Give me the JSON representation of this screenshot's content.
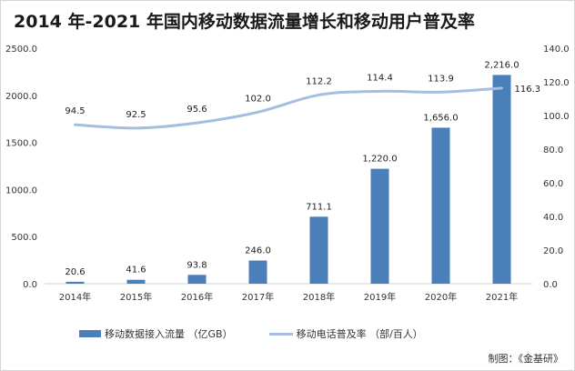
{
  "chart_data": {
    "type": "bar",
    "title": "2014 年-2021 年国内移动数据流量增长和移动用户普及率",
    "categories": [
      "2014年",
      "2015年",
      "2016年",
      "2017年",
      "2018年",
      "2019年",
      "2020年",
      "2021年"
    ],
    "series": [
      {
        "name": "移动数据接入流量 （亿GB）",
        "type": "bar",
        "axis": "left",
        "values": [
          20.6,
          41.6,
          93.8,
          246.0,
          711.1,
          1220.0,
          1656.0,
          2216.0
        ],
        "labels": [
          "20.6",
          "41.6",
          "93.8",
          "246.0",
          "711.1",
          "1,220.0",
          "1,656.0",
          "2,216.0"
        ],
        "color": "#4a7fba"
      },
      {
        "name": "移动电话普及率 （部/百人）",
        "type": "line",
        "axis": "right",
        "values": [
          94.5,
          92.5,
          95.6,
          102.0,
          112.2,
          114.4,
          113.9,
          116.3
        ],
        "labels": [
          "94.5",
          "92.5",
          "95.6",
          "102.0",
          "112.2",
          "114.4",
          "113.9",
          "116.3"
        ],
        "color": "#a3bde3"
      }
    ],
    "y_left": {
      "range": [
        0,
        2500
      ],
      "ticks": [
        0,
        500,
        1000,
        1500,
        2000,
        2500
      ],
      "tick_labels": [
        "0.0",
        "500.0",
        "1000.0",
        "1500.0",
        "2000.0",
        "2500.0"
      ]
    },
    "y_right": {
      "range": [
        0,
        140
      ],
      "ticks": [
        0,
        20,
        40,
        60,
        80,
        100,
        120,
        140
      ],
      "tick_labels": [
        "0.0",
        "20.0",
        "40.0",
        "60.0",
        "80.0",
        "100.0",
        "120.0",
        "140.0"
      ]
    },
    "grid": false,
    "legend_position": "bottom-left"
  },
  "credit": "制图：《金基研》"
}
